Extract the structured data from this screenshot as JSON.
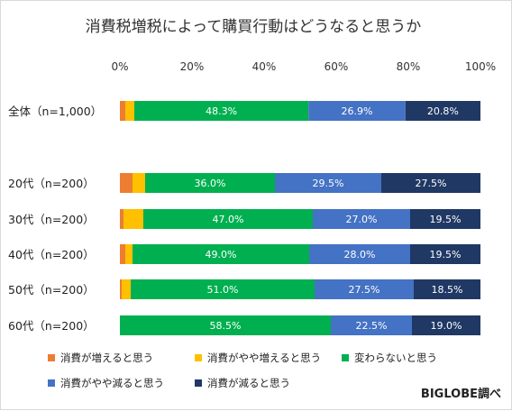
{
  "chart_data": {
    "type": "bar",
    "orientation": "horizontal",
    "stacked": true,
    "percent_stacked": true,
    "title": "消費税増税によって購買行動はどうなると思うか",
    "source": "BIGLOBE調べ",
    "xlabel": "",
    "ylabel": "",
    "xlim": [
      0,
      100
    ],
    "x_ticks": [
      "0%",
      "20%",
      "40%",
      "60%",
      "80%",
      "100%"
    ],
    "grid": false,
    "legend_position": "bottom",
    "categories": [
      "全体（n=1,000）",
      "20代（n=200）",
      "30代（n=200）",
      "40代（n=200）",
      "50代（n=200）",
      "60代（n=200）"
    ],
    "series": [
      {
        "name": "消費が増えると思う",
        "color": "#ed7d31",
        "values": [
          1.5,
          3.5,
          1.0,
          1.5,
          0.5,
          0.0
        ],
        "labels": [
          "",
          "",
          "",
          "",
          "",
          ""
        ]
      },
      {
        "name": "消費がやや増えると思う",
        "color": "#ffc000",
        "values": [
          2.5,
          3.5,
          5.5,
          2.0,
          2.5,
          0.0
        ],
        "labels": [
          "",
          "",
          "",
          "",
          "",
          ""
        ]
      },
      {
        "name": "変わらないと思う",
        "color": "#00b050",
        "values": [
          48.3,
          36.0,
          47.0,
          49.0,
          51.0,
          58.5
        ],
        "labels": [
          "48.3%",
          "36.0%",
          "47.0%",
          "49.0%",
          "51.0%",
          "58.5%"
        ]
      },
      {
        "name": "消費がやや減ると思う",
        "color": "#4472c4",
        "values": [
          26.9,
          29.5,
          27.0,
          28.0,
          27.5,
          22.5
        ],
        "labels": [
          "26.9%",
          "29.5%",
          "27.0%",
          "28.0%",
          "27.5%",
          "22.5%"
        ]
      },
      {
        "name": "消費が減ると思う",
        "color": "#203864",
        "values": [
          20.8,
          27.5,
          19.5,
          19.5,
          18.5,
          19.0
        ],
        "labels": [
          "20.8%",
          "27.5%",
          "19.5%",
          "19.5%",
          "18.5%",
          "19.0%"
        ]
      }
    ]
  }
}
